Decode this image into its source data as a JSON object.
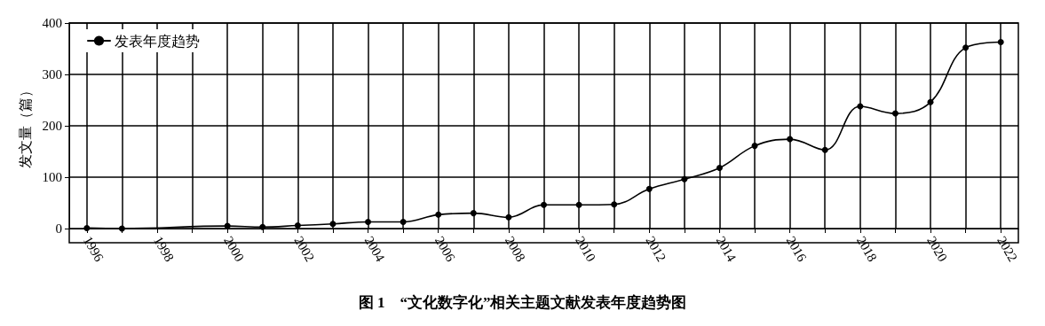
{
  "chart_data": {
    "type": "line",
    "ylabel": "发文量（篇）",
    "annotations": [
      "图 1　“文化数字化”相关主题文献发表年度趋势图"
    ],
    "xlim": [
      1995.5,
      2022.5
    ],
    "xticks": [
      1996,
      {
        "value": 1997,
        "label": null
      },
      1998,
      {
        "value": 1999,
        "label": null
      },
      2000,
      {
        "value": 2001,
        "label": null
      },
      2002,
      {
        "value": 2003,
        "label": null
      },
      2004,
      {
        "value": 2005,
        "label": null
      },
      2006,
      {
        "value": 2007,
        "label": null
      },
      2008,
      {
        "value": 2009,
        "label": null
      },
      2010,
      {
        "value": 2011,
        "label": null
      },
      2012,
      {
        "value": 2013,
        "label": null
      },
      2014,
      {
        "value": 2015,
        "label": null
      },
      2016,
      {
        "value": 2017,
        "label": null
      },
      2018,
      {
        "value": 2019,
        "label": null
      },
      2020,
      {
        "value": 2021,
        "label": null
      },
      2022
    ],
    "ylim": [
      0,
      400
    ],
    "yticks": [
      0,
      100,
      200,
      300,
      400
    ],
    "grid": true,
    "legend": "top left",
    "marker": "circle",
    "line_style": "solid",
    "series": [
      {
        "name": "发表年度趋势",
        "color": "#000000",
        "x": [
          1996,
          1997,
          2000,
          2001,
          2002,
          2003,
          2004,
          2005,
          2006,
          2007,
          2008,
          2009,
          2010,
          2011,
          2012,
          2013,
          2014,
          2015,
          2016,
          2017,
          2018,
          2019,
          2020,
          2021,
          2022
        ],
        "values": [
          1,
          0,
          5,
          3,
          6,
          9,
          13,
          13,
          27,
          30,
          22,
          46,
          46,
          47,
          77,
          96,
          118,
          161,
          174,
          153,
          238,
          224,
          246,
          352,
          363
        ]
      }
    ]
  }
}
